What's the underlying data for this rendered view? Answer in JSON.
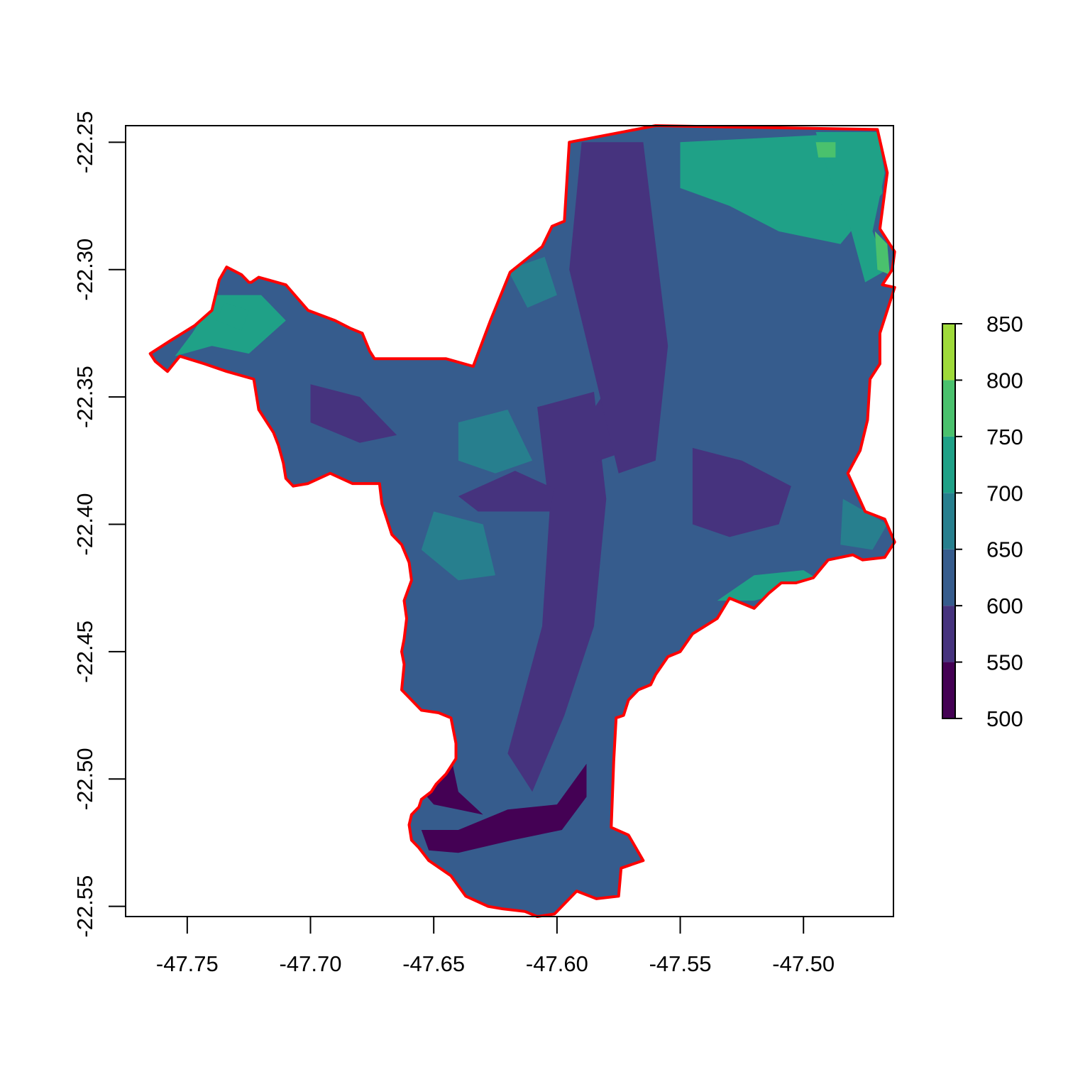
{
  "map": {
    "extent": {
      "x": [
        -47.775,
        -47.4635
      ],
      "y": [
        -22.554,
        -22.2435
      ]
    },
    "axes": {
      "x": {
        "ticks": [
          -47.75,
          -47.7,
          -47.65,
          -47.6,
          -47.55,
          -47.5
        ],
        "labels": [
          "-47.75",
          "-47.70",
          "-47.65",
          "-47.60",
          "-47.55",
          "-47.50"
        ]
      },
      "y": {
        "ticks": [
          -22.25,
          -22.3,
          -22.35,
          -22.4,
          -22.45,
          -22.5,
          -22.55
        ],
        "labels": [
          "-22.25",
          "-22.30",
          "-22.35",
          "-22.40",
          "-22.45",
          "-22.50",
          "-22.55"
        ]
      }
    },
    "boundary_color": "#ff0000",
    "boundary": [
      [
        -47.595,
        -22.25
      ],
      [
        -47.56,
        -22.2435
      ],
      [
        -47.47,
        -22.245
      ],
      [
        -47.466,
        -22.262
      ],
      [
        -47.469,
        -22.284
      ],
      [
        -47.463,
        -22.293
      ],
      [
        -47.464,
        -22.3
      ],
      [
        -47.468,
        -22.306
      ],
      [
        -47.463,
        -22.307
      ],
      [
        -47.465,
        -22.313
      ],
      [
        -47.469,
        -22.325
      ],
      [
        -47.469,
        -22.337
      ],
      [
        -47.473,
        -22.343
      ],
      [
        -47.474,
        -22.359
      ],
      [
        -47.477,
        -22.371
      ],
      [
        -47.482,
        -22.38
      ],
      [
        -47.475,
        -22.395
      ],
      [
        -47.467,
        -22.398
      ],
      [
        -47.463,
        -22.407
      ],
      [
        -47.467,
        -22.413
      ],
      [
        -47.476,
        -22.414
      ],
      [
        -47.48,
        -22.412
      ],
      [
        -47.49,
        -22.414
      ],
      [
        -47.496,
        -22.421
      ],
      [
        -47.503,
        -22.423
      ],
      [
        -47.509,
        -22.423
      ],
      [
        -47.514,
        -22.427
      ],
      [
        -47.52,
        -22.433
      ],
      [
        -47.53,
        -22.429
      ],
      [
        -47.535,
        -22.437
      ],
      [
        -47.545,
        -22.443
      ],
      [
        -47.55,
        -22.45
      ],
      [
        -47.555,
        -22.452
      ],
      [
        -47.56,
        -22.459
      ],
      [
        -47.562,
        -22.463
      ],
      [
        -47.567,
        -22.465
      ],
      [
        -47.571,
        -22.469
      ],
      [
        -47.573,
        -22.475
      ],
      [
        -47.576,
        -22.476
      ],
      [
        -47.577,
        -22.493
      ],
      [
        -47.578,
        -22.519
      ],
      [
        -47.571,
        -22.522
      ],
      [
        -47.565,
        -22.532
      ],
      [
        -47.574,
        -22.535
      ],
      [
        -47.575,
        -22.546
      ],
      [
        -47.584,
        -22.547
      ],
      [
        -47.592,
        -22.544
      ],
      [
        -47.601,
        -22.553
      ],
      [
        -47.608,
        -22.554
      ],
      [
        -47.613,
        -22.552
      ],
      [
        -47.622,
        -22.551
      ],
      [
        -47.628,
        -22.55
      ],
      [
        -47.637,
        -22.546
      ],
      [
        -47.643,
        -22.538
      ],
      [
        -47.652,
        -22.532
      ],
      [
        -47.656,
        -22.527
      ],
      [
        -47.659,
        -22.524
      ],
      [
        -47.66,
        -22.518
      ],
      [
        -47.659,
        -22.514
      ],
      [
        -47.656,
        -22.511
      ],
      [
        -47.655,
        -22.508
      ],
      [
        -47.651,
        -22.505
      ],
      [
        -47.649,
        -22.502
      ],
      [
        -47.645,
        -22.498
      ],
      [
        -47.641,
        -22.492
      ],
      [
        -47.641,
        -22.486
      ],
      [
        -47.643,
        -22.476
      ],
      [
        -47.648,
        -22.474
      ],
      [
        -47.655,
        -22.473
      ],
      [
        -47.66,
        -22.468
      ],
      [
        -47.663,
        -22.465
      ],
      [
        -47.662,
        -22.455
      ],
      [
        -47.663,
        -22.45
      ],
      [
        -47.662,
        -22.445
      ],
      [
        -47.661,
        -22.437
      ],
      [
        -47.662,
        -22.43
      ],
      [
        -47.659,
        -22.422
      ],
      [
        -47.66,
        -22.415
      ],
      [
        -47.663,
        -22.408
      ],
      [
        -47.667,
        -22.404
      ],
      [
        -47.669,
        -22.398
      ],
      [
        -47.671,
        -22.392
      ],
      [
        -47.672,
        -22.384
      ],
      [
        -47.683,
        -22.384
      ],
      [
        -47.692,
        -22.38
      ],
      [
        -47.701,
        -22.384
      ],
      [
        -47.707,
        -22.385
      ],
      [
        -47.71,
        -22.382
      ],
      [
        -47.711,
        -22.376
      ],
      [
        -47.713,
        -22.369
      ],
      [
        -47.715,
        -22.364
      ],
      [
        -47.721,
        -22.355
      ],
      [
        -47.723,
        -22.343
      ],
      [
        -47.734,
        -22.34
      ],
      [
        -47.743,
        -22.337
      ],
      [
        -47.753,
        -22.334
      ],
      [
        -47.758,
        -22.34
      ],
      [
        -47.763,
        -22.336
      ],
      [
        -47.765,
        -22.333
      ],
      [
        -47.757,
        -22.328
      ],
      [
        -47.747,
        -22.322
      ],
      [
        -47.74,
        -22.316
      ],
      [
        -47.737,
        -22.304
      ],
      [
        -47.734,
        -22.299
      ],
      [
        -47.728,
        -22.302
      ],
      [
        -47.725,
        -22.305
      ],
      [
        -47.724,
        -22.305
      ],
      [
        -47.721,
        -22.303
      ],
      [
        -47.71,
        -22.306
      ],
      [
        -47.701,
        -22.316
      ],
      [
        -47.69,
        -22.32
      ],
      [
        -47.684,
        -22.323
      ],
      [
        -47.679,
        -22.325
      ],
      [
        -47.676,
        -22.332
      ],
      [
        -47.674,
        -22.335
      ],
      [
        -47.645,
        -22.335
      ],
      [
        -47.634,
        -22.338
      ],
      [
        -47.627,
        -22.32
      ],
      [
        -47.619,
        -22.301
      ],
      [
        -47.606,
        -22.291
      ],
      [
        -47.602,
        -22.283
      ],
      [
        -47.597,
        -22.281
      ],
      [
        -47.595,
        -22.25
      ]
    ],
    "terrain_patches": [
      {
        "elev": 560,
        "points": [
          [
            -47.608,
            -22.354
          ],
          [
            -47.585,
            -22.348
          ],
          [
            -47.58,
            -22.39
          ],
          [
            -47.585,
            -22.44
          ],
          [
            -47.597,
            -22.475
          ],
          [
            -47.61,
            -22.505
          ],
          [
            -47.62,
            -22.49
          ],
          [
            -47.606,
            -22.44
          ],
          [
            -47.603,
            -22.395
          ]
        ]
      },
      {
        "elev": 560,
        "points": [
          [
            -47.601,
            -22.386
          ],
          [
            -47.617,
            -22.379
          ],
          [
            -47.64,
            -22.389
          ],
          [
            -47.632,
            -22.395
          ],
          [
            -47.603,
            -22.395
          ]
        ]
      },
      {
        "elev": 560,
        "points": [
          [
            -47.586,
            -22.356
          ],
          [
            -47.575,
            -22.34
          ],
          [
            -47.574,
            -22.372
          ],
          [
            -47.586,
            -22.376
          ]
        ]
      },
      {
        "elev": 520,
        "points": [
          [
            -47.655,
            -22.52
          ],
          [
            -47.64,
            -22.52
          ],
          [
            -47.62,
            -22.512
          ],
          [
            -47.6,
            -22.51
          ],
          [
            -47.588,
            -22.494
          ],
          [
            -47.588,
            -22.507
          ],
          [
            -47.598,
            -22.52
          ],
          [
            -47.618,
            -22.524
          ],
          [
            -47.64,
            -22.529
          ],
          [
            -47.652,
            -22.528
          ]
        ]
      },
      {
        "elev": 540,
        "points": [
          [
            -47.659,
            -22.5
          ],
          [
            -47.645,
            -22.482
          ],
          [
            -47.64,
            -22.505
          ],
          [
            -47.63,
            -22.514
          ],
          [
            -47.65,
            -22.51
          ]
        ]
      },
      {
        "elev": 585,
        "points": [
          [
            -47.59,
            -22.25
          ],
          [
            -47.565,
            -22.25
          ],
          [
            -47.56,
            -22.29
          ],
          [
            -47.555,
            -22.33
          ],
          [
            -47.56,
            -22.375
          ],
          [
            -47.575,
            -22.38
          ],
          [
            -47.585,
            -22.34
          ],
          [
            -47.595,
            -22.3
          ]
        ]
      },
      {
        "elev": 585,
        "points": [
          [
            -47.545,
            -22.37
          ],
          [
            -47.525,
            -22.375
          ],
          [
            -47.505,
            -22.385
          ],
          [
            -47.51,
            -22.4
          ],
          [
            -47.53,
            -22.405
          ],
          [
            -47.545,
            -22.4
          ]
        ]
      },
      {
        "elev": 585,
        "points": [
          [
            -47.7,
            -22.345
          ],
          [
            -47.68,
            -22.35
          ],
          [
            -47.665,
            -22.365
          ],
          [
            -47.68,
            -22.368
          ],
          [
            -47.7,
            -22.36
          ]
        ]
      },
      {
        "elev": 700,
        "points": [
          [
            -47.55,
            -22.25
          ],
          [
            -47.47,
            -22.246
          ],
          [
            -47.468,
            -22.27
          ],
          [
            -47.485,
            -22.29
          ],
          [
            -47.51,
            -22.285
          ],
          [
            -47.53,
            -22.275
          ],
          [
            -47.55,
            -22.268
          ]
        ]
      },
      {
        "elev": 730,
        "points": [
          [
            -47.495,
            -22.246
          ],
          [
            -47.47,
            -22.246
          ],
          [
            -47.467,
            -22.262
          ],
          [
            -47.472,
            -22.285
          ],
          [
            -47.466,
            -22.3
          ],
          [
            -47.475,
            -22.305
          ],
          [
            -47.482,
            -22.28
          ],
          [
            -47.49,
            -22.262
          ]
        ]
      },
      {
        "elev": 770,
        "points": [
          [
            -47.495,
            -22.25
          ],
          [
            -47.487,
            -22.25
          ],
          [
            -47.487,
            -22.256
          ],
          [
            -47.494,
            -22.256
          ]
        ]
      },
      {
        "elev": 770,
        "points": [
          [
            -47.471,
            -22.285
          ],
          [
            -47.466,
            -22.29
          ],
          [
            -47.465,
            -22.302
          ],
          [
            -47.47,
            -22.3
          ]
        ]
      },
      {
        "elev": 700,
        "points": [
          [
            -47.738,
            -22.31
          ],
          [
            -47.72,
            -22.31
          ],
          [
            -47.71,
            -22.32
          ],
          [
            -47.725,
            -22.333
          ],
          [
            -47.74,
            -22.33
          ],
          [
            -47.755,
            -22.334
          ],
          [
            -47.748,
            -22.325
          ]
        ]
      },
      {
        "elev": 730,
        "points": [
          [
            -47.735,
            -22.313
          ],
          [
            -47.725,
            -22.316
          ],
          [
            -47.728,
            -22.324
          ],
          [
            -47.738,
            -22.32
          ]
        ]
      },
      {
        "elev": 700,
        "points": [
          [
            -47.535,
            -22.43
          ],
          [
            -47.52,
            -22.42
          ],
          [
            -47.5,
            -22.418
          ],
          [
            -47.49,
            -22.424
          ],
          [
            -47.505,
            -22.426
          ],
          [
            -47.52,
            -22.43
          ]
        ]
      },
      {
        "elev": 690,
        "points": [
          [
            -47.484,
            -22.39
          ],
          [
            -47.475,
            -22.395
          ],
          [
            -47.466,
            -22.4
          ],
          [
            -47.472,
            -22.41
          ],
          [
            -47.485,
            -22.408
          ]
        ]
      },
      {
        "elev": 690,
        "points": [
          [
            -47.64,
            -22.36
          ],
          [
            -47.62,
            -22.355
          ],
          [
            -47.61,
            -22.375
          ],
          [
            -47.625,
            -22.38
          ],
          [
            -47.64,
            -22.375
          ]
        ]
      },
      {
        "elev": 690,
        "points": [
          [
            -47.65,
            -22.395
          ],
          [
            -47.63,
            -22.4
          ],
          [
            -47.625,
            -22.42
          ],
          [
            -47.64,
            -22.422
          ],
          [
            -47.655,
            -22.41
          ]
        ]
      },
      {
        "elev": 690,
        "points": [
          [
            -47.62,
            -22.3
          ],
          [
            -47.605,
            -22.295
          ],
          [
            -47.6,
            -22.31
          ],
          [
            -47.612,
            -22.315
          ]
        ]
      }
    ],
    "base_elev": 630
  },
  "legend": {
    "breaks": [
      500,
      550,
      600,
      650,
      700,
      750,
      800,
      850
    ],
    "labels": [
      "500",
      "550",
      "600",
      "650",
      "700",
      "750",
      "800",
      "850"
    ],
    "colors": [
      "#440154",
      "#46337e",
      "#365c8d",
      "#277f8e",
      "#1fa187",
      "#4ac16d",
      "#9fda3a",
      "#fde725"
    ]
  }
}
